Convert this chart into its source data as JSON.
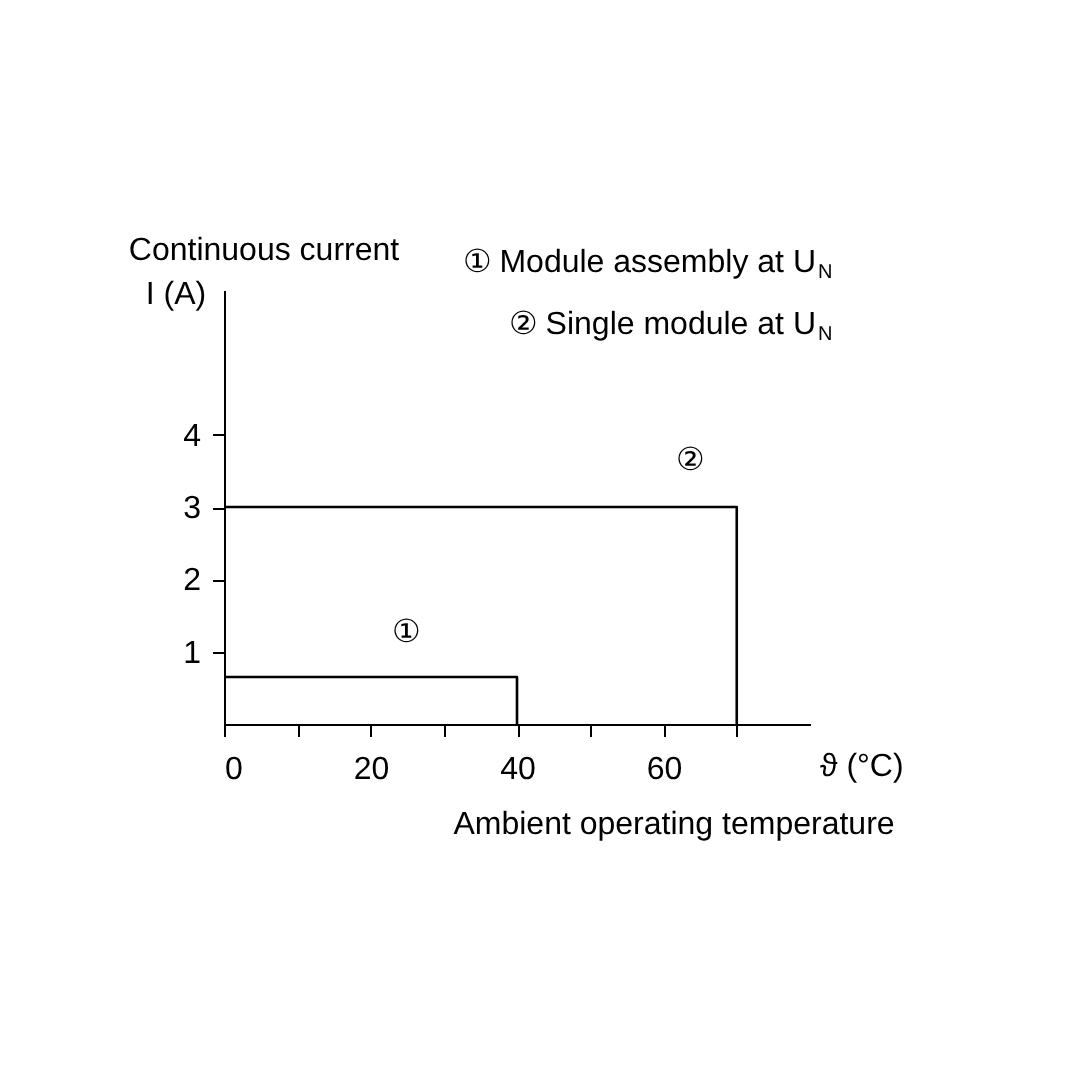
{
  "chart_data": {
    "type": "line",
    "xlabel": "Ambient operating temperature",
    "ylabel": "Continuous current",
    "series": [
      {
        "color": "#000000",
        "x": [
          0,
          40,
          40
        ],
        "values": [
          0.65,
          0.65,
          0
        ]
      },
      {
        "color": "#000000",
        "x": [
          0,
          70,
          70
        ],
        "values": [
          3,
          3,
          0
        ]
      }
    ],
    "xlim": [
      0,
      80
    ],
    "ylim": [
      0,
      6
    ],
    "xticks": [
      0,
      {
        "value": 10,
        "label": null
      },
      20,
      {
        "value": 30,
        "label": null
      },
      40,
      {
        "value": 50,
        "label": null
      },
      60,
      {
        "value": 70,
        "label": null
      }
    ],
    "yticks": [
      1,
      2,
      3,
      4
    ],
    "annotations": [
      "I (A)",
      "ϑ (°C)",
      "① Module assembly at U$_{N}$",
      "② Single module at U$_{N}$",
      "①",
      "②"
    ],
    "grid": false,
    "line_style": "solid",
    "marker": "none"
  }
}
